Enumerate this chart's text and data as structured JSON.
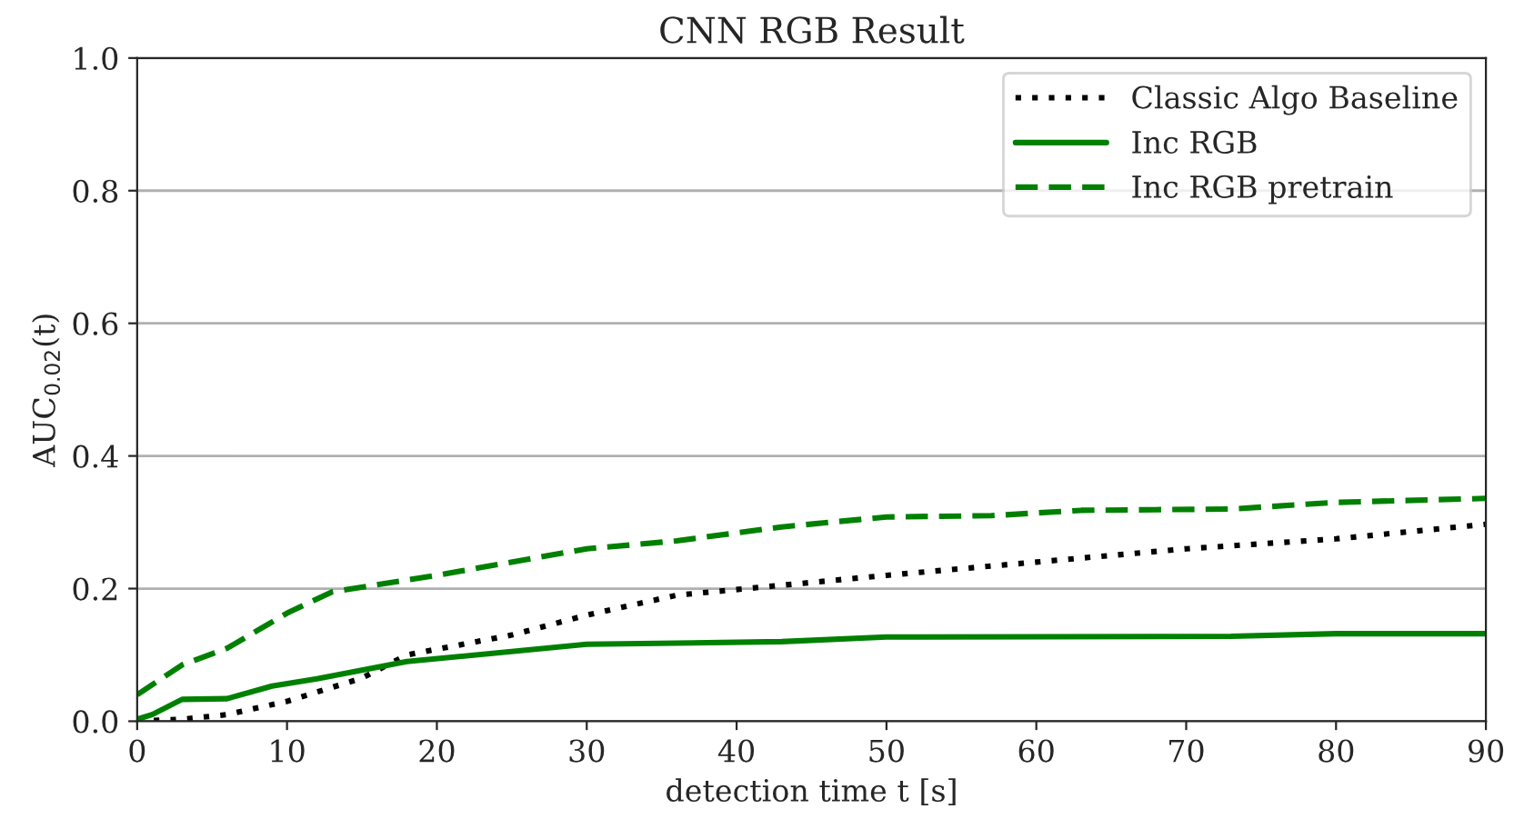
{
  "chart_data": {
    "type": "line",
    "title": "CNN RGB Result",
    "xlabel": "detection time t [s]",
    "ylabel": "AUC$_{0.02}$(t)",
    "xlim": [
      0,
      90
    ],
    "xticks": [
      0,
      10,
      20,
      30,
      40,
      50,
      60,
      70,
      80,
      90
    ],
    "ylim": [
      0,
      1.0
    ],
    "yticks": [
      {
        "value": 0,
        "label": "0.0"
      },
      0.2,
      0.4,
      0.6,
      0.8,
      {
        "value": 1.0,
        "label": "1.0"
      }
    ],
    "grid": "y",
    "legend": "top right",
    "series": [
      {
        "name": "Classic Algo Baseline",
        "color": "#000000",
        "line_style": "dotted",
        "x": [
          0,
          3,
          6,
          10,
          15,
          18,
          25,
          30,
          36,
          43,
          50,
          60,
          70,
          80,
          90
        ],
        "values": [
          0,
          0.003,
          0.01,
          0.03,
          0.065,
          0.1,
          0.13,
          0.16,
          0.19,
          0.205,
          0.22,
          0.24,
          0.26,
          0.275,
          0.297
        ]
      },
      {
        "name": "Inc RGB",
        "color": "#008000",
        "line_style": "solid",
        "x": [
          0,
          1,
          3,
          6,
          9,
          12,
          18,
          30,
          43,
          50,
          73,
          80,
          90
        ],
        "values": [
          0.003,
          0.01,
          0.033,
          0.034,
          0.053,
          0.064,
          0.09,
          0.116,
          0.12,
          0.127,
          0.128,
          0.132,
          0.132
        ]
      },
      {
        "name": "Inc RGB pretrain",
        "color": "#008000",
        "line_style": "dashed",
        "x": [
          0,
          3,
          6,
          10,
          13,
          20,
          30,
          36,
          43,
          50,
          57,
          63,
          73,
          80,
          90
        ],
        "values": [
          0.04,
          0.085,
          0.11,
          0.163,
          0.195,
          0.22,
          0.26,
          0.272,
          0.293,
          0.308,
          0.31,
          0.318,
          0.32,
          0.33,
          0.336
        ]
      }
    ]
  }
}
